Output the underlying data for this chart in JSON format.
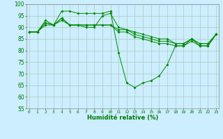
{
  "xlabel": "Humidité relative (%)",
  "ylabel": "",
  "bg_color": "#cceeff",
  "grid_color": "#aaccbb",
  "line_color": "#008800",
  "xmin": 0,
  "xmax": 23,
  "ymin": 55,
  "ymax": 100,
  "yticks": [
    55,
    60,
    65,
    70,
    75,
    80,
    85,
    90,
    95,
    100
  ],
  "xticks": [
    0,
    1,
    2,
    3,
    4,
    5,
    6,
    7,
    8,
    9,
    10,
    11,
    12,
    13,
    14,
    15,
    16,
    17,
    18,
    19,
    20,
    21,
    22,
    23
  ],
  "curves": [
    [
      88,
      88,
      93,
      91,
      97,
      97,
      96,
      96,
      96,
      96,
      97,
      79,
      66,
      64,
      66,
      67,
      69,
      74,
      82,
      82,
      85,
      82,
      82,
      87
    ],
    [
      88,
      88,
      92,
      91,
      94,
      91,
      91,
      91,
      91,
      91,
      91,
      88,
      88,
      86,
      85,
      84,
      83,
      83,
      82,
      82,
      84,
      82,
      82,
      87
    ],
    [
      88,
      88,
      92,
      91,
      94,
      91,
      91,
      91,
      91,
      91,
      91,
      89,
      89,
      87,
      86,
      85,
      84,
      84,
      83,
      83,
      85,
      83,
      83,
      87
    ],
    [
      88,
      88,
      91,
      91,
      93,
      91,
      91,
      90,
      90,
      95,
      96,
      90,
      89,
      88,
      87,
      86,
      85,
      85,
      83,
      83,
      85,
      83,
      83,
      87
    ]
  ]
}
